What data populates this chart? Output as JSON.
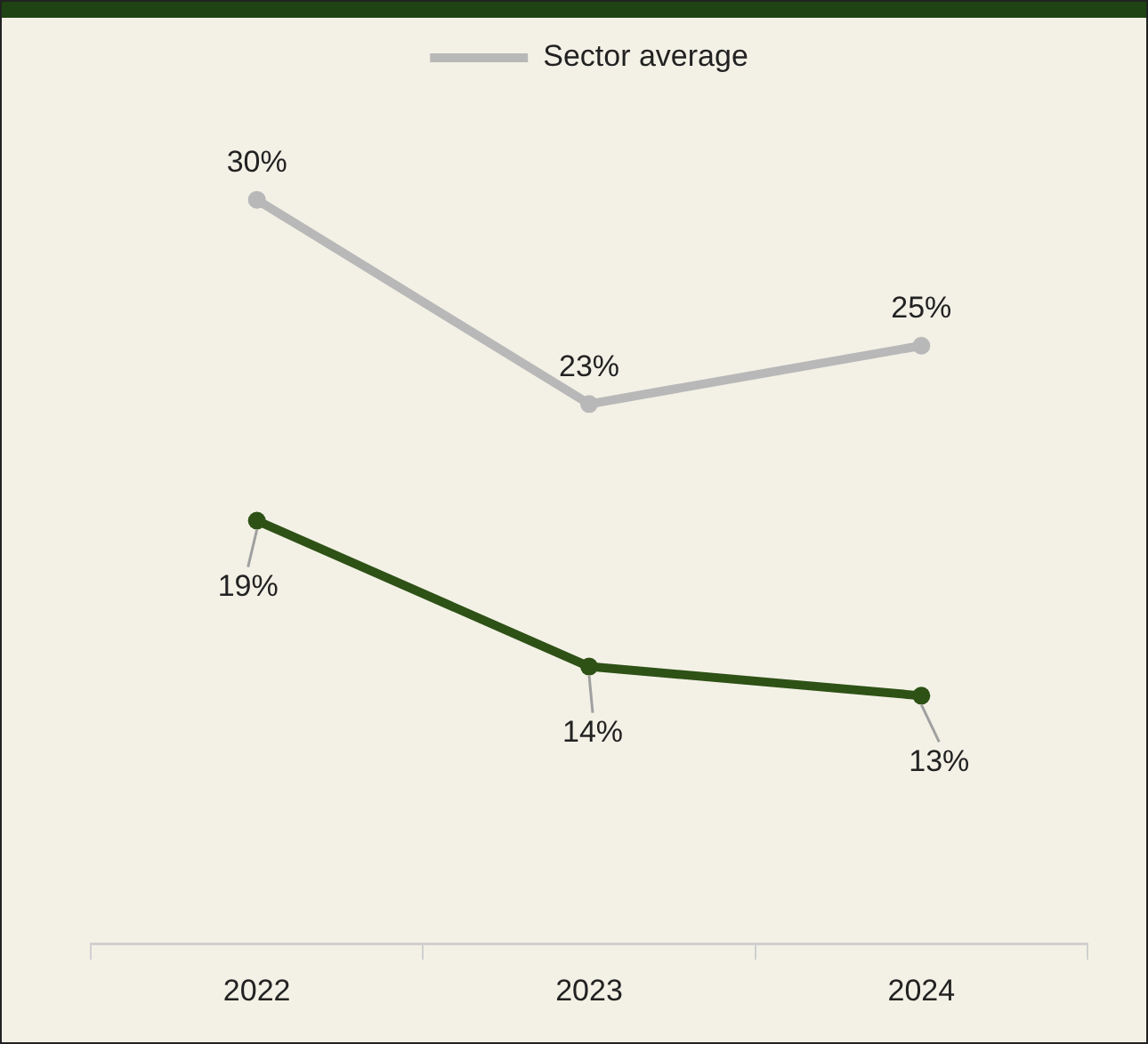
{
  "chart_data": {
    "type": "line",
    "categories": [
      "2022",
      "2023",
      "2024"
    ],
    "series": [
      {
        "name": "Sector average",
        "color": "#b8b8b8",
        "values": [
          30,
          23,
          25
        ],
        "value_labels": [
          "30%",
          "23%",
          "25%"
        ]
      },
      {
        "color": "#2e5116",
        "values": [
          19,
          14,
          13
        ],
        "value_labels": [
          "19%",
          "14%",
          "13%"
        ]
      }
    ],
    "legend": "top",
    "marker": "circle",
    "line_style": "solid",
    "grid": false,
    "tick_labels": "x"
  }
}
